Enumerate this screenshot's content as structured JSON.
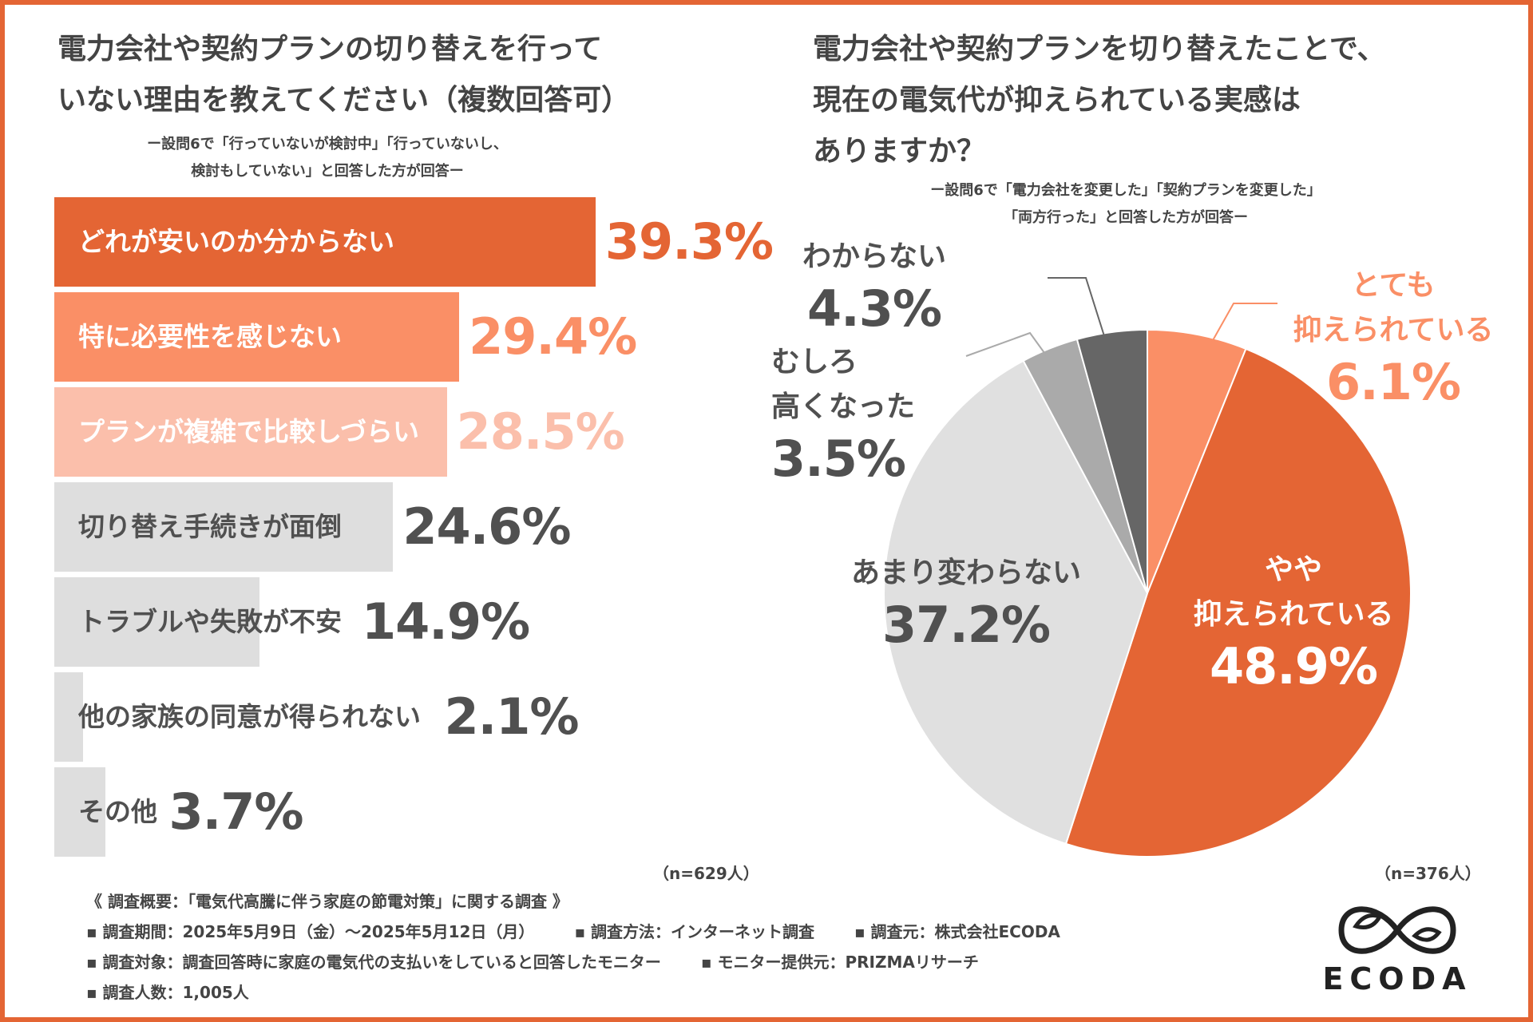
{
  "colors": {
    "accent": "#e46534",
    "light_orange": "#fa8f66",
    "pale_orange": "#fbbfab",
    "gray_bar": "#dedede",
    "gray_text": "#505050",
    "pie_light": "#e0e0e0",
    "pie_mid": "#aaaaaa",
    "pie_dark": "#666666"
  },
  "left": {
    "title_lines": [
      "電力会社や契約プランの切り替えを行って",
      "いない理由を教えてください（複数回答可）"
    ],
    "subtitle_lines": [
      "ー設問6で「行っていないが検討中」「行っていないし、",
      "検討もしていない」と回答した方が回答ー"
    ],
    "n_label": "（n=629人）"
  },
  "right": {
    "title_lines": [
      "電力会社や契約プランを切り替えたことで、",
      "現在の電気代が抑えられている実感は",
      "ありますか？"
    ],
    "subtitle_lines": [
      "ー設問6で「電力会社を変更した」「契約プランを変更した」",
      "「両方行った」と回答した方が回答ー"
    ],
    "n_label": "（n=376人）"
  },
  "chart_data": [
    {
      "type": "bar",
      "orientation": "horizontal",
      "title": "電力会社や契約プランの切り替えを行っていない理由を教えてください（複数回答可）",
      "categories": [
        "どれが安いのか分からない",
        "特に必要性を感じない",
        "プランが複雑で比較しづらい",
        "切り替え手続きが面倒",
        "トラブルや失敗が不安",
        "他の家族の同意が得られない",
        "その他"
      ],
      "values": [
        39.3,
        29.4,
        28.5,
        24.6,
        14.9,
        2.1,
        3.7
      ],
      "value_labels": [
        "39.3%",
        "29.4%",
        "28.5%",
        "24.6%",
        "14.9%",
        "2.1%",
        "3.7%"
      ],
      "xlim": [
        0,
        40
      ],
      "unit": "%"
    },
    {
      "type": "pie",
      "title": "電力会社や契約プランを切り替えたことで、現在の電気代が抑えられている実感はありますか？",
      "start": "12 o'clock, clockwise",
      "slices": [
        {
          "label_lines": [
            "とても",
            "抑えられている"
          ],
          "value": 6.1,
          "pct": "6.1%"
        },
        {
          "label_lines": [
            "やや",
            "抑えられている"
          ],
          "value": 48.9,
          "pct": "48.9%"
        },
        {
          "label_lines": [
            "あまり変わらない"
          ],
          "value": 37.2,
          "pct": "37.2%"
        },
        {
          "label_lines": [
            "むしろ",
            "高くなった"
          ],
          "value": 3.5,
          "pct": "3.5%"
        },
        {
          "label_lines": [
            "わからない"
          ],
          "value": 4.3,
          "pct": "4.3%"
        }
      ]
    }
  ],
  "footer": {
    "heading": "《 調査概要：「電気代高騰に伴う家庭の節電対策」に関する調査 》",
    "period": "▪ 調査期間：2025年5月9日（金）〜2025年5月12日（月）",
    "method": "▪ 調査方法：インターネット調査",
    "source": "▪ 調査元：株式会社ECODA",
    "target": "▪ 調査対象：調査回答時に家庭の電気代の支払いをしていると回答したモニター",
    "provider": "▪ モニター提供元：PRIZMAリサーチ",
    "count": "▪ 調査人数：1,005人"
  },
  "logo": {
    "text": "ECODA"
  }
}
